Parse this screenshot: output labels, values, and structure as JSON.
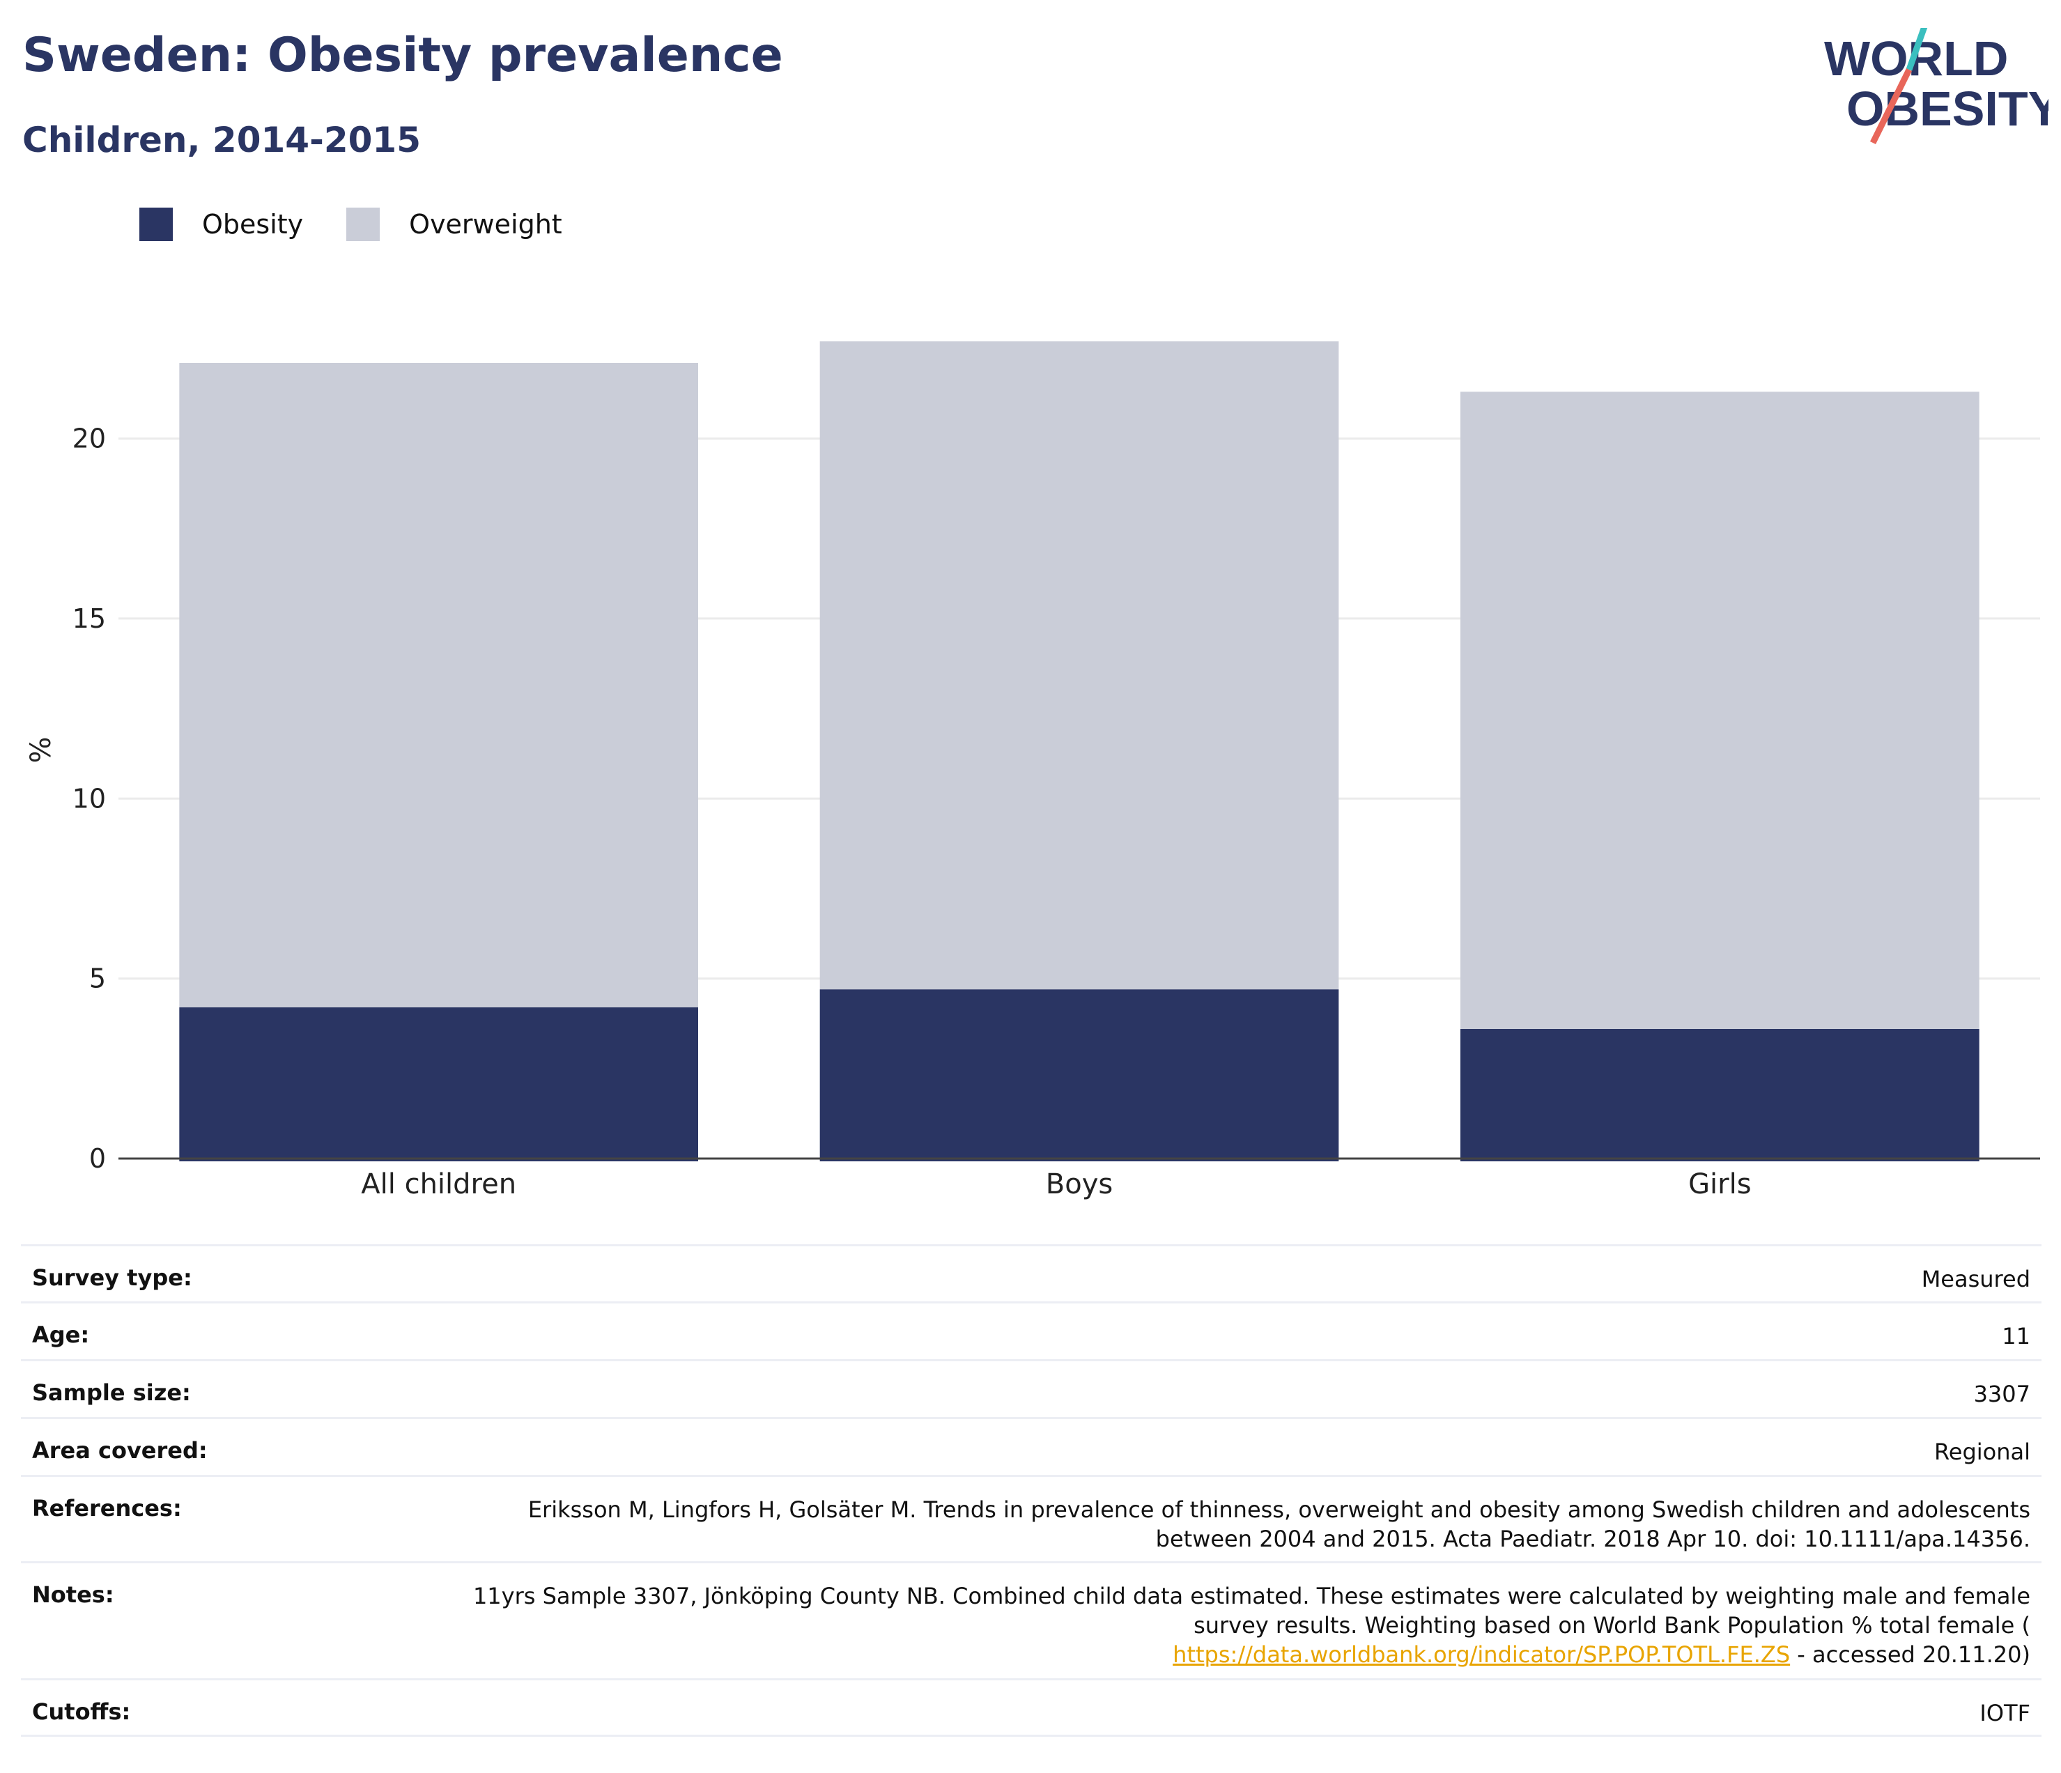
{
  "header": {
    "title": "Sweden: Obesity prevalence",
    "subtitle": "Children, 2014-2015"
  },
  "logo": {
    "line1": "WORLD",
    "line2": "OBESITY",
    "colors": {
      "text": "#2a3563",
      "slash_top": "#3bbfbf",
      "slash_bottom": "#e8665a"
    }
  },
  "chart_data": {
    "type": "bar",
    "stacked": true,
    "categories": [
      "All children",
      "Boys",
      "Girls"
    ],
    "series": [
      {
        "name": "Obesity",
        "color": "#2a3563",
        "values": [
          4.2,
          4.7,
          3.6
        ]
      },
      {
        "name": "Overweight",
        "color": "#cacdd8",
        "values": [
          17.9,
          18.0,
          17.7
        ]
      }
    ],
    "ylabel": "%",
    "ylim": [
      0,
      22.7
    ],
    "yticks": [
      0,
      5,
      10,
      15,
      20
    ],
    "grid": true,
    "legend_position": "top-left"
  },
  "info": {
    "rows": [
      {
        "label": "Survey type:",
        "value": "Measured"
      },
      {
        "label": "Age:",
        "value": "11"
      },
      {
        "label": "Sample size:",
        "value": "3307"
      },
      {
        "label": "Area covered:",
        "value": "Regional"
      },
      {
        "label": "References:",
        "value": "Eriksson M, Lingfors H, Golsäter M. Trends in prevalence of thinness, overweight and obesity among Swedish children and adolescents between 2004 and 2015. Acta Paediatr. 2018 Apr 10. doi: 10.1111/apa.14356."
      },
      {
        "label": "Notes:",
        "value": "11yrs Sample 3307, Jönköping County NB. Combined child data estimated. These estimates were calculated by weighting male and female survey results. Weighting based on World Bank Population % total female (",
        "link": "https://data.worldbank.org/indicator/SP.POP.TOTL.FE.ZS",
        "suffix": " - accessed 20.11.20)"
      },
      {
        "label": "Cutoffs:",
        "value": "IOTF"
      }
    ]
  }
}
